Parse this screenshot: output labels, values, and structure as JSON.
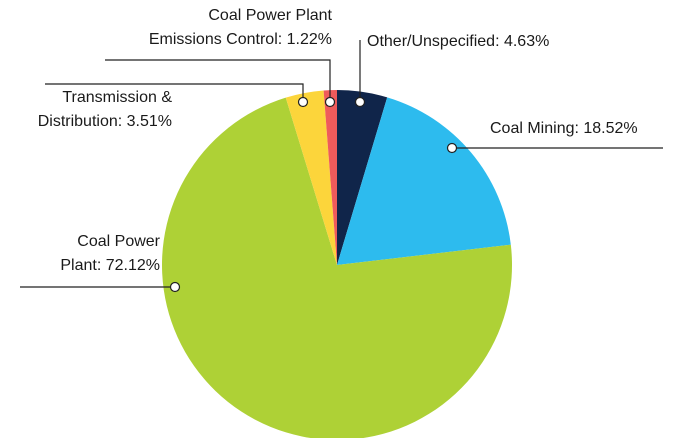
{
  "chart_data": {
    "type": "pie",
    "values": [
      4.63,
      18.52,
      72.12,
      3.51,
      1.22
    ],
    "value_labels": [
      [
        "Other/Unspecified: 4.63%"
      ],
      [
        "Coal Mining: 18.52%"
      ],
      [
        "Coal Power",
        "Plant: 72.12%"
      ],
      [
        "Transmission &",
        "Distribution: 3.51%"
      ],
      [
        "Coal Power Plant",
        "Emissions Control: 1.22%"
      ]
    ],
    "colors": [
      "#10254a",
      "#2dbbee",
      "#aed136",
      "#fcd53b",
      "#ef5b5b"
    ]
  }
}
